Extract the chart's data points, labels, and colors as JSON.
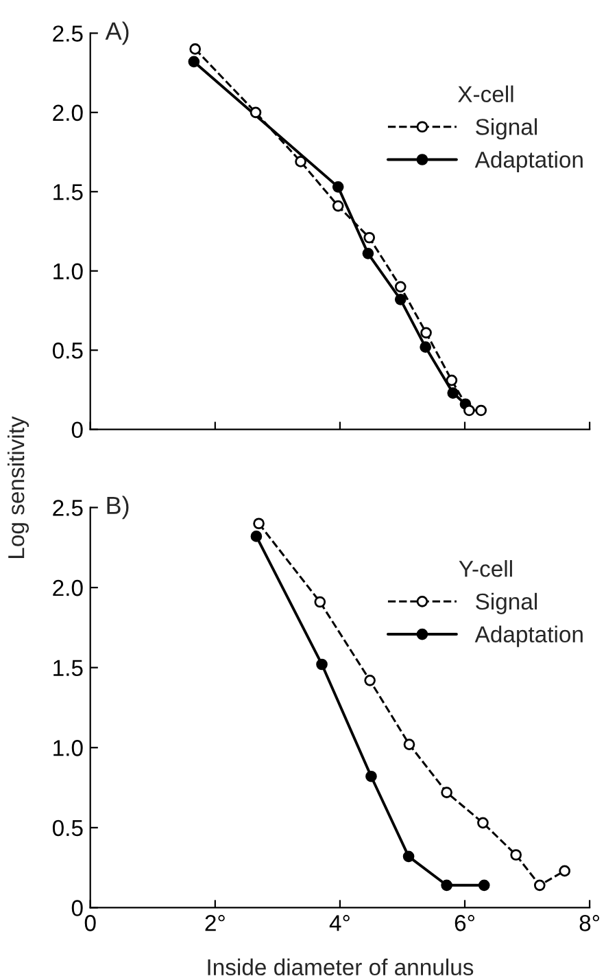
{
  "chart_data": [
    {
      "type": "line",
      "title": "A)",
      "legend_title": "X-cell",
      "legend": "top right",
      "marker": "circle",
      "grid": false,
      "tick_labels": "y",
      "xlim": [
        0,
        8
      ],
      "xticks": [
        {
          "value": 0,
          "label": null
        },
        {
          "value": 2,
          "label": null
        },
        {
          "value": 4,
          "label": null
        },
        {
          "value": 6,
          "label": null
        },
        {
          "value": 8,
          "label": null
        }
      ],
      "ylim": [
        0,
        2.5
      ],
      "yticks": [
        0,
        {
          "value": 0.5,
          "label": "0.5"
        },
        {
          "value": 1.0,
          "label": "1.0"
        },
        {
          "value": 1.5,
          "label": "1.5"
        },
        {
          "value": 2.0,
          "label": "2.0"
        },
        {
          "value": 2.5,
          "label": "2.5"
        }
      ],
      "ylabel": "Log sensitivity",
      "series": [
        {
          "name": "Signal",
          "color": "#000000",
          "line_style": "dashed",
          "x": [
            1.68,
            2.65,
            3.37,
            3.97,
            4.47,
            4.97,
            5.38,
            5.79,
            6.07,
            6.26
          ],
          "values": [
            2.4,
            2.0,
            1.69,
            1.41,
            1.21,
            0.9,
            0.61,
            0.31,
            0.12,
            0.12
          ]
        },
        {
          "name": "Adaptation",
          "color": "#000000",
          "line_style": "solid",
          "x": [
            1.66,
            3.97,
            4.45,
            4.97,
            5.37,
            5.81,
            6.01
          ],
          "values": [
            2.32,
            1.53,
            1.11,
            0.82,
            0.52,
            0.23,
            0.16
          ]
        }
      ]
    },
    {
      "type": "line",
      "title": "B)",
      "legend_title": "Y-cell",
      "legend": "top right",
      "marker": "circle",
      "grid": false,
      "xlim": [
        0,
        8
      ],
      "xticks": [
        {
          "value": 0,
          "label": "0"
        },
        {
          "value": 2,
          "label": "2°"
        },
        {
          "value": 4,
          "label": "4°"
        },
        {
          "value": 6,
          "label": "6°"
        },
        {
          "value": 8,
          "label": "8°"
        }
      ],
      "ylim": [
        0,
        2.5
      ],
      "yticks": [
        0,
        {
          "value": 0.5,
          "label": "0.5"
        },
        {
          "value": 1.0,
          "label": "1.0"
        },
        {
          "value": 1.5,
          "label": "1.5"
        },
        {
          "value": 2.0,
          "label": "2.0"
        },
        {
          "value": 2.5,
          "label": "2.5"
        }
      ],
      "xlabel": "Inside diameter of annulus",
      "series": [
        {
          "name": "Signal",
          "color": "#000000",
          "line_style": "dashed",
          "x": [
            2.7,
            3.68,
            4.48,
            5.11,
            5.71,
            6.29,
            6.82,
            7.2,
            7.6
          ],
          "values": [
            2.4,
            1.91,
            1.42,
            1.02,
            0.72,
            0.53,
            0.33,
            0.14,
            0.23
          ]
        },
        {
          "name": "Adaptation",
          "color": "#000000",
          "line_style": "solid",
          "x": [
            2.66,
            3.71,
            4.5,
            5.1,
            5.71,
            6.31
          ],
          "values": [
            2.32,
            1.52,
            0.82,
            0.32,
            0.14,
            0.14
          ]
        }
      ]
    }
  ]
}
